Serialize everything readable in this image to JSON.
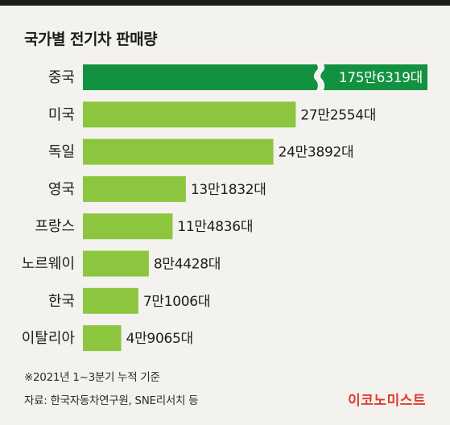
{
  "title": "국가별 전기차 판매량",
  "footnote": "※2021년 1~3분기 누적 기준",
  "source": "자료: 한국자동차연구원, SNE리서치 등",
  "brand": "이코노미스트",
  "colors": {
    "highlight": "#129241",
    "bar": "#8cc63f",
    "background": "#f3f2ee"
  },
  "chart_data": {
    "type": "bar",
    "orientation": "horizontal",
    "axis_break": true,
    "categories": [
      "중국",
      "미국",
      "독일",
      "영국",
      "프랑스",
      "노르웨이",
      "한국",
      "이탈리아"
    ],
    "values": [
      1756319,
      272554,
      243892,
      131832,
      114836,
      84428,
      71006,
      49065
    ],
    "value_labels": [
      "175만6319대",
      "27만2554대",
      "24만3892대",
      "13만1832대",
      "11만4836대",
      "8만4428대",
      "7만1006대",
      "4만9065대"
    ],
    "unit": "대",
    "highlight_index": 0
  }
}
